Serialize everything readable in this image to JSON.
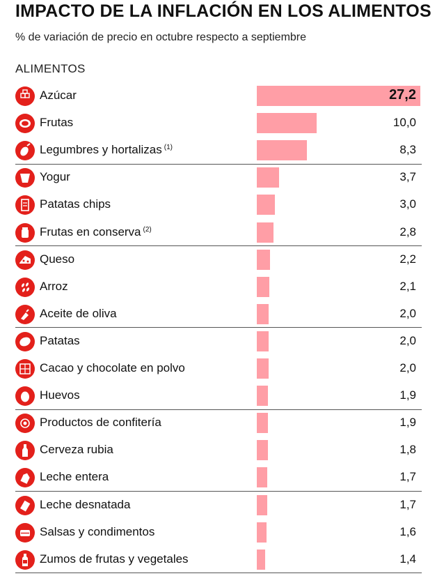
{
  "header": {
    "title": "IMPACTO DE LA INFLACIÓN EN LOS ALIMENTOS",
    "subtitle": "% de variación de precio en octubre respecto a septiembre",
    "section": "ALIMENTOS"
  },
  "colors": {
    "bar": "#ff9ea6",
    "icon": "#e3201b"
  },
  "chart_data": {
    "type": "bar",
    "orientation": "horizontal",
    "title": "IMPACTO DE LA INFLACIÓN EN LOS ALIMENTOS",
    "subtitle": "% de variación de precio en octubre respecto a septiembre",
    "xlim": [
      0,
      27.2
    ],
    "grid": false,
    "items": [
      {
        "label": "Azúcar",
        "note": "",
        "value": 27.2,
        "display": "27,2",
        "icon": "sugar-cubes-icon",
        "bold": true
      },
      {
        "label": "Frutas",
        "note": "",
        "value": 10.0,
        "display": "10,0",
        "icon": "melon-icon"
      },
      {
        "label": "Legumbres y hortalizas",
        "note": "(1)",
        "value": 8.3,
        "display": "8,3",
        "icon": "eggplant-icon"
      },
      {
        "label": "Yogur",
        "note": "",
        "value": 3.7,
        "display": "3,7",
        "icon": "yogurt-cup-icon"
      },
      {
        "label": "Patatas chips",
        "note": "",
        "value": 3.0,
        "display": "3,0",
        "icon": "chips-bag-icon"
      },
      {
        "label": "Frutas en conserva",
        "note": "(2)",
        "value": 2.8,
        "display": "2,8",
        "icon": "jar-icon"
      },
      {
        "label": "Queso",
        "note": "",
        "value": 2.2,
        "display": "2,2",
        "icon": "cheese-icon"
      },
      {
        "label": "Arroz",
        "note": "",
        "value": 2.1,
        "display": "2,1",
        "icon": "rice-grains-icon"
      },
      {
        "label": "Aceite de oliva",
        "note": "",
        "value": 2.0,
        "display": "2,0",
        "icon": "oil-bottle-icon"
      },
      {
        "label": "Patatas",
        "note": "",
        "value": 2.0,
        "display": "2,0",
        "icon": "potato-icon"
      },
      {
        "label": "Cacao y chocolate en polvo",
        "note": "",
        "value": 2.0,
        "display": "2,0",
        "icon": "chocolate-icon"
      },
      {
        "label": "Huevos",
        "note": "",
        "value": 1.9,
        "display": "1,9",
        "icon": "egg-icon"
      },
      {
        "label": "Productos de confitería",
        "note": "",
        "value": 1.9,
        "display": "1,9",
        "icon": "candy-icon"
      },
      {
        "label": "Cerveza rubia",
        "note": "",
        "value": 1.8,
        "display": "1,8",
        "icon": "beer-bottle-icon"
      },
      {
        "label": "Leche entera",
        "note": "",
        "value": 1.7,
        "display": "1,7",
        "icon": "milk-carton-icon"
      },
      {
        "label": "Leche desnatada",
        "note": "",
        "value": 1.7,
        "display": "1,7",
        "icon": "milk-carton-skim-icon"
      },
      {
        "label": "Salsas y condimentos",
        "note": "",
        "value": 1.6,
        "display": "1,6",
        "icon": "sauce-can-icon"
      },
      {
        "label": "Zumos de frutas y vegetales",
        "note": "",
        "value": 1.4,
        "display": "1,4",
        "icon": "juice-bottle-icon"
      }
    ]
  }
}
